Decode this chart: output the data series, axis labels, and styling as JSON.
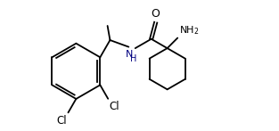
{
  "background_color": "#ffffff",
  "line_color": "#000000",
  "nh_color": "#000080",
  "o_color": "#000000",
  "nh2_color": "#000000",
  "cl_color": "#000000",
  "figsize": [
    3.13,
    1.47
  ],
  "dpi": 100,
  "xlim": [
    0,
    10
  ],
  "ylim": [
    0,
    4.7
  ]
}
